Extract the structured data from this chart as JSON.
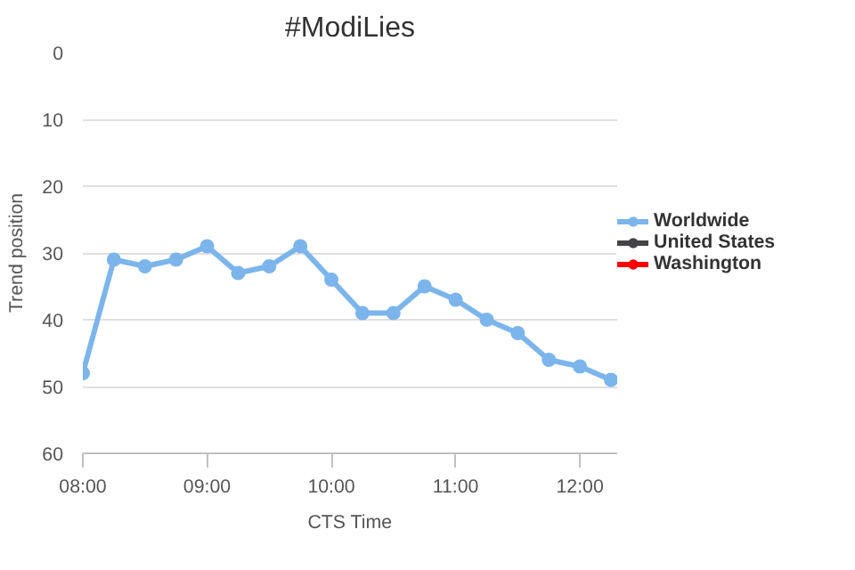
{
  "chart_data": {
    "type": "line",
    "title": "#ModiLies",
    "xlabel": "CTS Time",
    "ylabel": "Trend position",
    "x": [
      8,
      8.25,
      8.5,
      8.75,
      9,
      9.25,
      9.5,
      9.75,
      10,
      10.25,
      10.5,
      10.75,
      11,
      11.25,
      11.5,
      11.75,
      12,
      12.25
    ],
    "series": [
      {
        "name": "Worldwide",
        "color": "#7cb5ec",
        "values": [
          48,
          31,
          32,
          31,
          29,
          33,
          32,
          29,
          34,
          39,
          39,
          35,
          37,
          40,
          42,
          46,
          47,
          49
        ]
      },
      {
        "name": "United States",
        "color": "#434348",
        "values": [
          null,
          null,
          null,
          null,
          null,
          null,
          null,
          null,
          null,
          null,
          null,
          null,
          null,
          null,
          null,
          null,
          null,
          null
        ]
      },
      {
        "name": "Washington",
        "color": "#ff0000",
        "values": [
          null,
          null,
          null,
          null,
          null,
          null,
          null,
          null,
          null,
          null,
          null,
          null,
          null,
          null,
          null,
          null,
          null,
          null
        ]
      }
    ],
    "xlim": [
      8,
      12.3
    ],
    "xticks": [
      {
        "value": 8,
        "label": "08:00"
      },
      {
        "value": 9,
        "label": "09:00"
      },
      {
        "value": 10,
        "label": "10:00"
      },
      {
        "value": 11,
        "label": "11:00"
      },
      {
        "value": 12,
        "label": "12:00"
      }
    ],
    "ylim": [
      60,
      0
    ],
    "yticks": [
      0,
      10,
      20,
      30,
      40,
      50,
      60
    ],
    "grid": "y",
    "legend": "right",
    "marker": "circle",
    "line_style": "solid"
  }
}
